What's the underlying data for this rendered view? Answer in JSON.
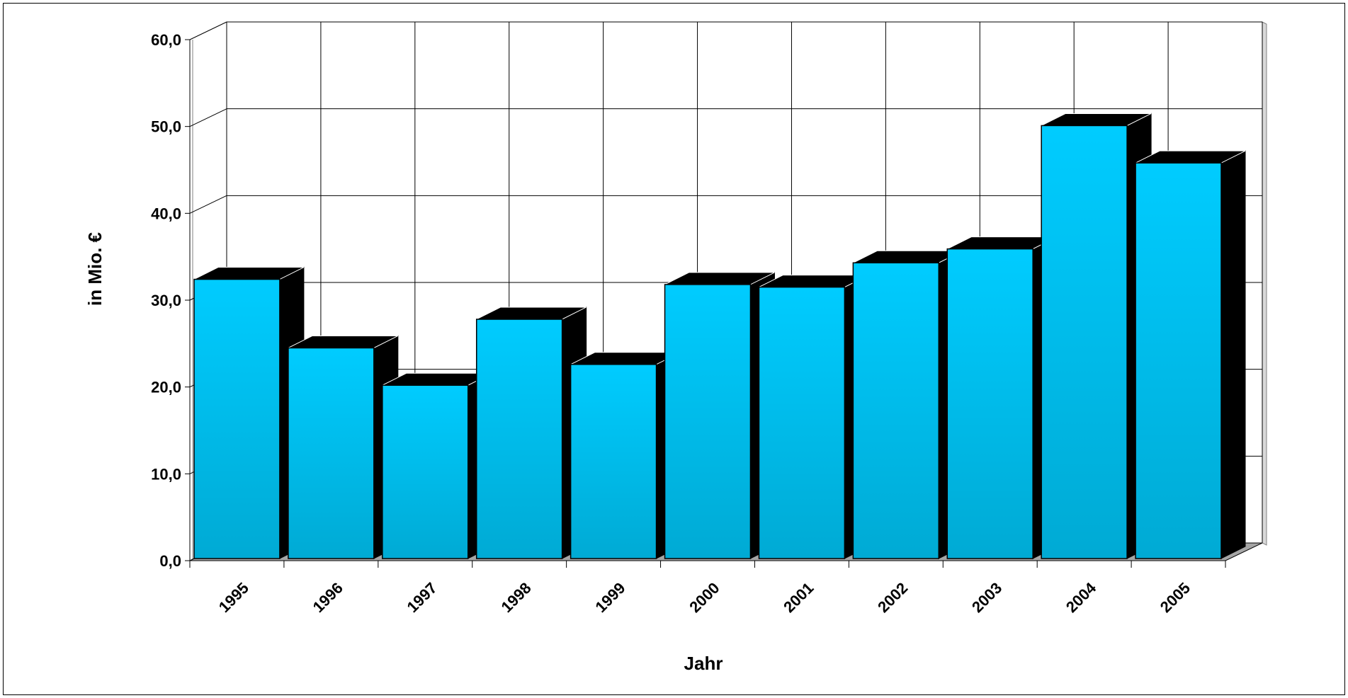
{
  "chart_data": {
    "type": "bar",
    "title": "",
    "xlabel": "Jahr",
    "ylabel": "in Mio. €",
    "categories": [
      "1995",
      "1996",
      "1997",
      "1998",
      "1999",
      "2000",
      "2001",
      "2002",
      "2003",
      "2004",
      "2005"
    ],
    "series": [
      {
        "values": [
          32.4,
          24.5,
          20.2,
          27.8,
          22.6,
          31.8,
          31.5,
          34.3,
          35.9,
          50.1,
          45.8
        ]
      }
    ],
    "ylim": [
      0,
      60
    ],
    "yticks": [
      0,
      10,
      20,
      30,
      40,
      50,
      60
    ],
    "ytick_labels": [
      "0,0",
      "10,0",
      "20,0",
      "30,0",
      "40,0",
      "50,0",
      "60,0"
    ],
    "grid": true,
    "legend": "none",
    "style": "3d",
    "colors": {
      "bar_front_top": "#00ccff",
      "bar_front_bottom": "#00aad4",
      "bar_side": "#000000",
      "bar_top": "#000000",
      "grid": "#000000",
      "floor": "#a6a6a6"
    }
  }
}
